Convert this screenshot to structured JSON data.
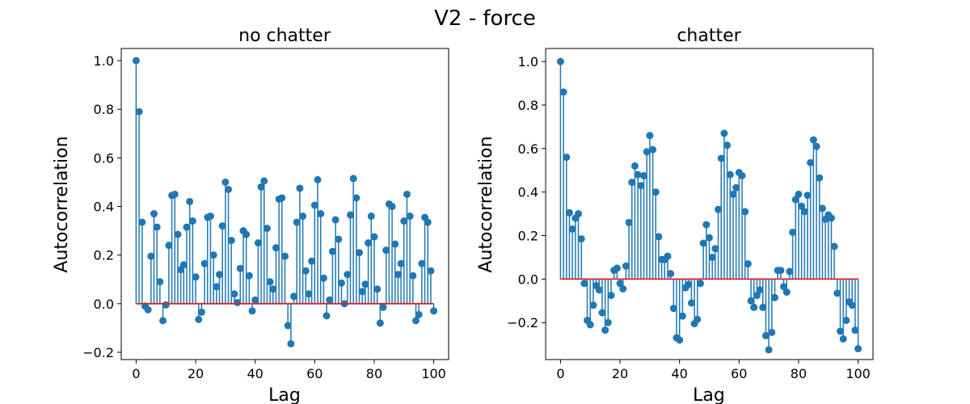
{
  "figure": {
    "suptitle": "V2 - force"
  },
  "colors": {
    "stem": "#1f77b4",
    "baseline": "#d62728",
    "axes": "#000000"
  },
  "chart_data": [
    {
      "type": "stem",
      "title": "no chatter",
      "xlabel": "Lag",
      "ylabel": "Autocorrelation",
      "xlim": [
        -5,
        105
      ],
      "ylim": [
        -0.23,
        1.05
      ],
      "xticks": [
        0,
        20,
        40,
        60,
        80,
        100
      ],
      "xtick_labels": [
        "0",
        "20",
        "40",
        "60",
        "80",
        "100"
      ],
      "yticks": [
        -0.2,
        0.0,
        0.2,
        0.4,
        0.6,
        0.8,
        1.0
      ],
      "ytick_labels": [
        "−0.2",
        "0.0",
        "0.2",
        "0.4",
        "0.6",
        "0.8",
        "1.0"
      ],
      "baseline": 0.0,
      "x_start": 0,
      "values": [
        1.0,
        0.79,
        0.335,
        -0.01,
        -0.025,
        0.195,
        0.37,
        0.315,
        0.09,
        -0.07,
        -0.005,
        0.24,
        0.445,
        0.45,
        0.285,
        0.14,
        0.16,
        0.315,
        0.42,
        0.34,
        0.11,
        -0.065,
        -0.035,
        0.165,
        0.355,
        0.36,
        0.2,
        0.07,
        0.12,
        0.32,
        0.5,
        0.47,
        0.26,
        0.04,
        0.005,
        0.145,
        0.3,
        0.285,
        0.115,
        -0.03,
        0.015,
        0.25,
        0.48,
        0.505,
        0.31,
        0.09,
        0.06,
        0.23,
        0.43,
        0.435,
        0.195,
        -0.09,
        -0.165,
        0.03,
        0.335,
        0.475,
        0.36,
        0.135,
        0.04,
        0.175,
        0.405,
        0.51,
        0.37,
        0.105,
        -0.05,
        0.015,
        0.215,
        0.345,
        0.265,
        0.085,
        0.0,
        0.12,
        0.365,
        0.515,
        0.435,
        0.21,
        0.05,
        0.08,
        0.25,
        0.36,
        0.275,
        0.06,
        -0.08,
        -0.015,
        0.22,
        0.41,
        0.4,
        0.245,
        0.12,
        0.165,
        0.34,
        0.45,
        0.36,
        0.115,
        -0.07,
        -0.045,
        0.165,
        0.355,
        0.335,
        0.135,
        -0.03
      ]
    },
    {
      "type": "stem",
      "title": "chatter",
      "xlabel": "Lag",
      "ylabel": "Autocorrelation",
      "xlim": [
        -5,
        105
      ],
      "ylim": [
        -0.37,
        1.06
      ],
      "xticks": [
        0,
        20,
        40,
        60,
        80,
        100
      ],
      "xtick_labels": [
        "0",
        "20",
        "40",
        "60",
        "80",
        "100"
      ],
      "yticks": [
        -0.2,
        0.0,
        0.2,
        0.4,
        0.6,
        0.8,
        1.0
      ],
      "ytick_labels": [
        "−0.2",
        "0.0",
        "0.2",
        "0.4",
        "0.6",
        "0.8",
        "1.0"
      ],
      "baseline": 0.0,
      "x_start": 0,
      "values": [
        1.0,
        0.86,
        0.56,
        0.305,
        0.23,
        0.28,
        0.3,
        0.185,
        -0.02,
        -0.19,
        -0.21,
        -0.12,
        -0.03,
        -0.05,
        -0.155,
        -0.235,
        -0.2,
        -0.075,
        0.04,
        0.05,
        -0.02,
        -0.045,
        0.06,
        0.26,
        0.445,
        0.52,
        0.48,
        0.43,
        0.475,
        0.585,
        0.66,
        0.595,
        0.4,
        0.195,
        0.09,
        0.09,
        0.105,
        0.025,
        -0.135,
        -0.27,
        -0.28,
        -0.17,
        -0.04,
        -0.025,
        -0.11,
        -0.205,
        -0.185,
        -0.02,
        0.165,
        0.25,
        0.19,
        0.1,
        0.14,
        0.32,
        0.555,
        0.67,
        0.615,
        0.48,
        0.39,
        0.42,
        0.49,
        0.475,
        0.31,
        0.07,
        -0.1,
        -0.13,
        -0.075,
        -0.05,
        -0.13,
        -0.26,
        -0.325,
        -0.245,
        -0.085,
        0.04,
        0.04,
        -0.035,
        -0.06,
        0.035,
        0.215,
        0.365,
        0.39,
        0.335,
        0.31,
        0.385,
        0.535,
        0.64,
        0.61,
        0.465,
        0.325,
        0.275,
        0.295,
        0.28,
        0.15,
        -0.065,
        -0.24,
        -0.275,
        -0.19,
        -0.105,
        -0.12,
        -0.235,
        -0.32
      ]
    }
  ]
}
